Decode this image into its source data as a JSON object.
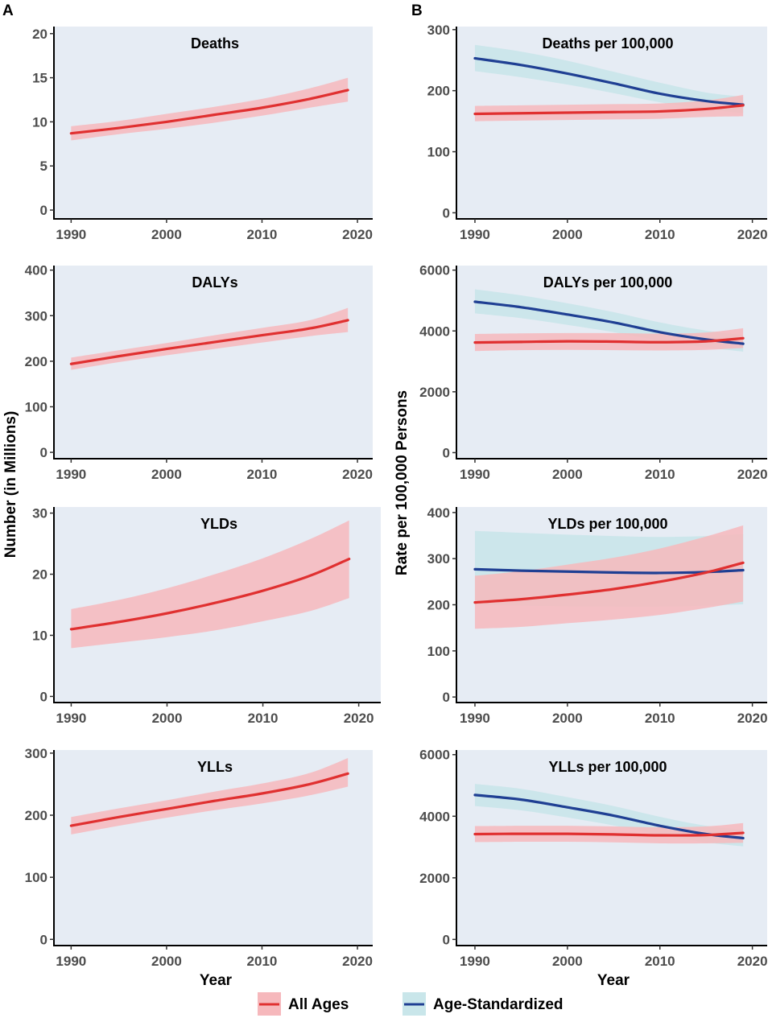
{
  "panel_labels": [
    "A",
    "B"
  ],
  "ylabel_left": "Number (in Millions)",
  "ylabel_right": "Rate per 100,000 Persons",
  "xlabel": "Year",
  "legend": {
    "all_ages": "All Ages",
    "age_standardized": "Age-Standardized"
  },
  "colors": {
    "panel_bg": "#e6ecf4",
    "all_ages_line": "#e03030",
    "all_ages_band": "#f6b8bc",
    "age_std_line": "#1f3f93",
    "age_std_band": "#c9e6ea"
  },
  "chart_data": [
    {
      "type": "line",
      "id": "deaths",
      "title": "Deaths",
      "xlabel": "",
      "ylabel": "Number (in Millions)",
      "xlim": [
        1988.2,
        2021.6
      ],
      "xticks": [
        1990,
        2000,
        2010,
        2020
      ],
      "ylim": [
        -1,
        20.8
      ],
      "yticks": [
        0,
        5,
        10,
        15,
        20
      ],
      "series": [
        {
          "name": "All Ages",
          "x": [
            1990,
            1995,
            2000,
            2005,
            2010,
            2015,
            2019
          ],
          "values": [
            8.7,
            9.3,
            10.0,
            10.8,
            11.6,
            12.6,
            13.6
          ],
          "lower": [
            7.9,
            8.6,
            9.2,
            9.9,
            10.7,
            11.6,
            12.3
          ],
          "upper": [
            9.5,
            10.1,
            10.9,
            11.7,
            12.6,
            13.8,
            15.0
          ]
        }
      ]
    },
    {
      "type": "line",
      "id": "deaths-rate",
      "title": "Deaths per 100,000",
      "xlabel": "",
      "ylabel": "Rate per 100,000 Persons",
      "xlim": [
        1988,
        2021.6
      ],
      "xticks": [
        1990,
        2000,
        2010,
        2020
      ],
      "ylim": [
        -10,
        305
      ],
      "yticks": [
        0,
        100,
        200,
        300
      ],
      "series": [
        {
          "name": "All Ages",
          "x": [
            1990,
            1995,
            2000,
            2005,
            2010,
            2015,
            2019
          ],
          "values": [
            162,
            163,
            164,
            165,
            166,
            170,
            176
          ],
          "lower": [
            150,
            151,
            152,
            153,
            154,
            157,
            158
          ],
          "upper": [
            175,
            176,
            177,
            178,
            179,
            184,
            193
          ]
        },
        {
          "name": "Age-Standardized",
          "x": [
            1990,
            1995,
            2000,
            2005,
            2010,
            2015,
            2019
          ],
          "values": [
            253,
            242,
            228,
            212,
            195,
            183,
            177
          ],
          "lower": [
            232,
            222,
            210,
            196,
            181,
            170,
            163
          ],
          "upper": [
            275,
            264,
            249,
            231,
            213,
            197,
            190
          ]
        }
      ]
    },
    {
      "type": "line",
      "id": "dalys",
      "title": "DALYs",
      "xlabel": "",
      "ylabel": "Number (in Millions)",
      "xlim": [
        1988.2,
        2021.6
      ],
      "xticks": [
        1990,
        2000,
        2010,
        2020
      ],
      "ylim": [
        -14,
        410
      ],
      "yticks": [
        0,
        100,
        200,
        300,
        400
      ],
      "series": [
        {
          "name": "All Ages",
          "x": [
            1990,
            1995,
            2000,
            2005,
            2010,
            2015,
            2019
          ],
          "values": [
            194,
            211,
            227,
            242,
            257,
            272,
            290
          ],
          "lower": [
            181,
            198,
            213,
            227,
            241,
            255,
            264
          ],
          "upper": [
            208,
            224,
            240,
            257,
            273,
            290,
            317
          ]
        }
      ]
    },
    {
      "type": "line",
      "id": "dalys-rate",
      "title": "DALYs per 100,000",
      "xlabel": "",
      "ylabel": "Rate per 100,000 Persons",
      "xlim": [
        1988,
        2021.6
      ],
      "xticks": [
        1990,
        2000,
        2010,
        2020
      ],
      "ylim": [
        -200,
        6150
      ],
      "yticks": [
        0,
        2000,
        4000,
        6000
      ],
      "series": [
        {
          "name": "All Ages",
          "x": [
            1990,
            1995,
            2000,
            2005,
            2010,
            2015,
            2019
          ],
          "values": [
            3620,
            3640,
            3660,
            3650,
            3630,
            3660,
            3760
          ],
          "lower": [
            3340,
            3370,
            3380,
            3370,
            3360,
            3380,
            3440
          ],
          "upper": [
            3900,
            3920,
            3930,
            3930,
            3910,
            3950,
            4090
          ]
        },
        {
          "name": "Age-Standardized",
          "x": [
            1990,
            1995,
            2000,
            2005,
            2010,
            2015,
            2019
          ],
          "values": [
            4960,
            4780,
            4540,
            4280,
            3960,
            3720,
            3580
          ],
          "lower": [
            4580,
            4420,
            4200,
            3960,
            3680,
            3460,
            3320
          ],
          "upper": [
            5370,
            5170,
            4910,
            4620,
            4280,
            4010,
            3860
          ]
        }
      ]
    },
    {
      "type": "line",
      "id": "ylds",
      "title": "YLDs",
      "xlabel": "",
      "ylabel": "Number (in Millions)",
      "xlim": [
        1988.2,
        2022.3
      ],
      "xticks": [
        1990,
        2000,
        2010,
        2020
      ],
      "ylim": [
        -1,
        31
      ],
      "yticks": [
        0,
        10,
        20,
        30
      ],
      "series": [
        {
          "name": "All Ages",
          "x": [
            1990,
            1995,
            2000,
            2005,
            2010,
            2015,
            2019
          ],
          "values": [
            11.0,
            12.2,
            13.6,
            15.3,
            17.3,
            19.8,
            22.5
          ],
          "lower": [
            7.9,
            8.8,
            9.7,
            10.8,
            12.3,
            14.0,
            16.1
          ],
          "upper": [
            14.3,
            15.8,
            17.7,
            20.0,
            22.6,
            25.8,
            28.8
          ]
        }
      ]
    },
    {
      "type": "line",
      "id": "ylds-rate",
      "title": "YLDs per 100,000",
      "xlabel": "",
      "ylabel": "Rate per 100,000 Persons",
      "xlim": [
        1988,
        2021.6
      ],
      "xticks": [
        1990,
        2000,
        2010,
        2020
      ],
      "ylim": [
        -12,
        412
      ],
      "yticks": [
        0,
        100,
        200,
        300,
        400
      ],
      "series": [
        {
          "name": "All Ages",
          "x": [
            1990,
            1995,
            2000,
            2005,
            2010,
            2015,
            2019
          ],
          "values": [
            205,
            212,
            222,
            234,
            250,
            270,
            291
          ],
          "lower": [
            148,
            152,
            160,
            168,
            178,
            193,
            207
          ],
          "upper": [
            263,
            273,
            287,
            302,
            322,
            348,
            372
          ]
        },
        {
          "name": "Age-Standardized",
          "x": [
            1990,
            1995,
            2000,
            2005,
            2010,
            2015,
            2019
          ],
          "values": [
            277,
            274,
            272,
            270,
            269,
            271,
            275
          ],
          "lower": [
            200,
            198,
            197,
            196,
            196,
            198,
            201
          ],
          "upper": [
            360,
            356,
            352,
            349,
            347,
            349,
            353
          ]
        }
      ]
    },
    {
      "type": "line",
      "id": "ylls",
      "title": "YLLs",
      "xlabel": "Year",
      "ylabel": "Number (in Millions)",
      "xlim": [
        1988.2,
        2021.6
      ],
      "xticks": [
        1990,
        2000,
        2010,
        2020
      ],
      "ylim": [
        -10,
        305
      ],
      "yticks": [
        0,
        100,
        200,
        300
      ],
      "series": [
        {
          "name": "All Ages",
          "x": [
            1990,
            1995,
            2000,
            2005,
            2010,
            2015,
            2019
          ],
          "values": [
            183,
            197,
            210,
            223,
            235,
            250,
            267
          ],
          "lower": [
            169,
            183,
            196,
            208,
            219,
            232,
            246
          ],
          "upper": [
            197,
            211,
            224,
            238,
            251,
            268,
            292
          ]
        }
      ]
    },
    {
      "type": "line",
      "id": "ylls-rate",
      "title": "YLLs per 100,000",
      "xlabel": "Year",
      "ylabel": "Rate per 100,000 Persons",
      "xlim": [
        1988,
        2021.6
      ],
      "xticks": [
        1990,
        2000,
        2010,
        2020
      ],
      "ylim": [
        -200,
        6150
      ],
      "yticks": [
        0,
        2000,
        4000,
        6000
      ],
      "series": [
        {
          "name": "All Ages",
          "x": [
            1990,
            1995,
            2000,
            2005,
            2010,
            2015,
            2019
          ],
          "values": [
            3420,
            3430,
            3430,
            3410,
            3380,
            3390,
            3460
          ],
          "lower": [
            3160,
            3170,
            3170,
            3150,
            3120,
            3120,
            3140
          ],
          "upper": [
            3680,
            3690,
            3690,
            3670,
            3640,
            3670,
            3780
          ]
        },
        {
          "name": "Age-Standardized",
          "x": [
            1990,
            1995,
            2000,
            2005,
            2010,
            2015,
            2019
          ],
          "values": [
            4690,
            4540,
            4290,
            4020,
            3690,
            3420,
            3290
          ],
          "lower": [
            4330,
            4190,
            3960,
            3700,
            3400,
            3150,
            3020
          ],
          "upper": [
            5050,
            4890,
            4620,
            4330,
            3980,
            3690,
            3560
          ]
        }
      ]
    }
  ]
}
